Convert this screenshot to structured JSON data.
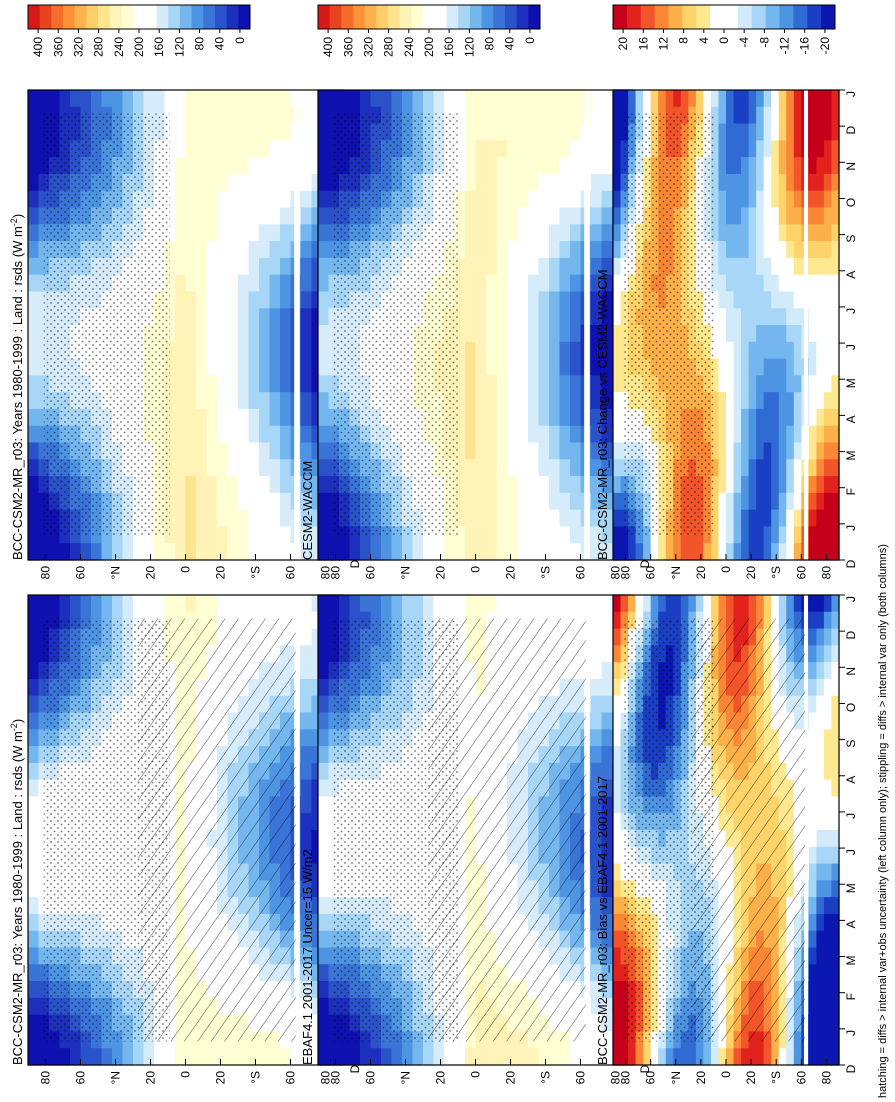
{
  "footnote": "hatching = diffs > internal var+obs uncertainty (left column only); stippling = diffs > internal var only (both columns)",
  "chart_data": [
    {
      "type": "heatmap",
      "title": "BCC-CSM2-MR_r03: Years 1980-1999 : Land : rsds (W m",
      "title_sup": "-2",
      "title_end": ")",
      "x_ticks": [
        "D",
        "J",
        "F",
        "M",
        "A",
        "M",
        "J",
        "J",
        "A",
        "S",
        "O",
        "N",
        "D",
        "J"
      ],
      "y_ticks": [
        "80",
        "60",
        "°N",
        "20",
        "0",
        "20",
        "°S",
        "60",
        "80"
      ],
      "colorbar": {
        "ticks": [
          "400",
          "360",
          "320",
          "280",
          "240",
          "200",
          "160",
          "120",
          "80",
          "40",
          "0"
        ]
      },
      "hatching": true,
      "stippling": true
    },
    {
      "type": "heatmap",
      "title": "EBAF4.1 2001-2017 Uncer=15 W/m2",
      "x_ticks": [
        "D",
        "J",
        "F",
        "M",
        "A",
        "M",
        "J",
        "J",
        "A",
        "S",
        "O",
        "N",
        "D",
        "J"
      ],
      "y_ticks": [
        "80",
        "60",
        "°N",
        "20",
        "0",
        "20",
        "°S",
        "60",
        "80"
      ],
      "colorbar": {
        "ticks": [
          "400",
          "360",
          "320",
          "280",
          "240",
          "200",
          "160",
          "120",
          "80",
          "40",
          "0"
        ]
      },
      "hatching": true,
      "stippling": true
    },
    {
      "type": "heatmap",
      "title": "BCC-CSM2-MR_r03: Bias vs EBAF4.1 2001-2017",
      "x_ticks": [
        "D",
        "J",
        "F",
        "M",
        "A",
        "M",
        "J",
        "J",
        "A",
        "S",
        "O",
        "N",
        "D",
        "J"
      ],
      "y_ticks": [
        "80",
        "60",
        "°N",
        "20",
        "0",
        "20",
        "°S",
        "60",
        "80"
      ],
      "colorbar": {
        "ticks": [
          "20",
          "16",
          "12",
          "8",
          "4",
          "0",
          "-4",
          "-8",
          "-12",
          "-16",
          "-20"
        ]
      },
      "hatching": true,
      "stippling": true
    },
    {
      "type": "heatmap",
      "title": "BCC-CSM2-MR_r03: Years 1980-1999 : Land : rsds (W m",
      "title_sup": "-2",
      "title_end": ")",
      "x_ticks": [
        "D",
        "J",
        "F",
        "M",
        "A",
        "M",
        "J",
        "J",
        "A",
        "S",
        "O",
        "N",
        "D",
        "J"
      ],
      "y_ticks": [
        "80",
        "60",
        "°N",
        "20",
        "0",
        "20",
        "°S",
        "60",
        "80"
      ],
      "colorbar": {
        "ticks": [
          "400",
          "360",
          "320",
          "280",
          "240",
          "200",
          "160",
          "120",
          "80",
          "40",
          "0"
        ]
      },
      "hatching": false,
      "stippling": true
    },
    {
      "type": "heatmap",
      "title": "CESM2-WACCM",
      "x_ticks": [
        "D",
        "J",
        "F",
        "M",
        "A",
        "M",
        "J",
        "J",
        "A",
        "S",
        "O",
        "N",
        "D",
        "J"
      ],
      "y_ticks": [
        "80",
        "60",
        "°N",
        "20",
        "0",
        "20",
        "°S",
        "60",
        "80"
      ],
      "colorbar": {
        "ticks": [
          "400",
          "360",
          "320",
          "280",
          "240",
          "200",
          "160",
          "120",
          "80",
          "40",
          "0"
        ]
      },
      "hatching": false,
      "stippling": true
    },
    {
      "type": "heatmap",
      "title": "BCC-CSM2-MR_r03: Change vs CESM2-WACCM",
      "x_ticks": [
        "D",
        "J",
        "F",
        "M",
        "A",
        "M",
        "J",
        "J",
        "A",
        "S",
        "O",
        "N",
        "D",
        "J"
      ],
      "y_ticks": [
        "80",
        "60",
        "°N",
        "20",
        "0",
        "20",
        "°S",
        "60",
        "80"
      ],
      "colorbar": {
        "ticks": [
          "20",
          "16",
          "12",
          "8",
          "4",
          "0",
          "-4",
          "-8",
          "-12",
          "-16",
          "-20"
        ]
      },
      "hatching": false,
      "stippling": true
    }
  ],
  "colors": {
    "absolute_scale": [
      "#d7191c",
      "#e8431e",
      "#f46d2a",
      "#fb9238",
      "#fdb14f",
      "#fece6a",
      "#fee491",
      "#fff3b8",
      "#ffffd4",
      "#ffffff",
      "#ffffff",
      "#d7ecfb",
      "#a8d6f7",
      "#74b7ef",
      "#4d95e3",
      "#3a74d7",
      "#2a52c9",
      "#1c30bd",
      "#0f10b0"
    ],
    "diff_scale": [
      "#c4001a",
      "#e2231d",
      "#f2552a",
      "#f98736",
      "#fcb04a",
      "#fed36a",
      "#fee991",
      "#ffffff",
      "#ffffff",
      "#d2ebfb",
      "#a8d6f7",
      "#74b7ef",
      "#4d95e3",
      "#2f6bd3",
      "#1b3fc4",
      "#0c17b2"
    ]
  }
}
